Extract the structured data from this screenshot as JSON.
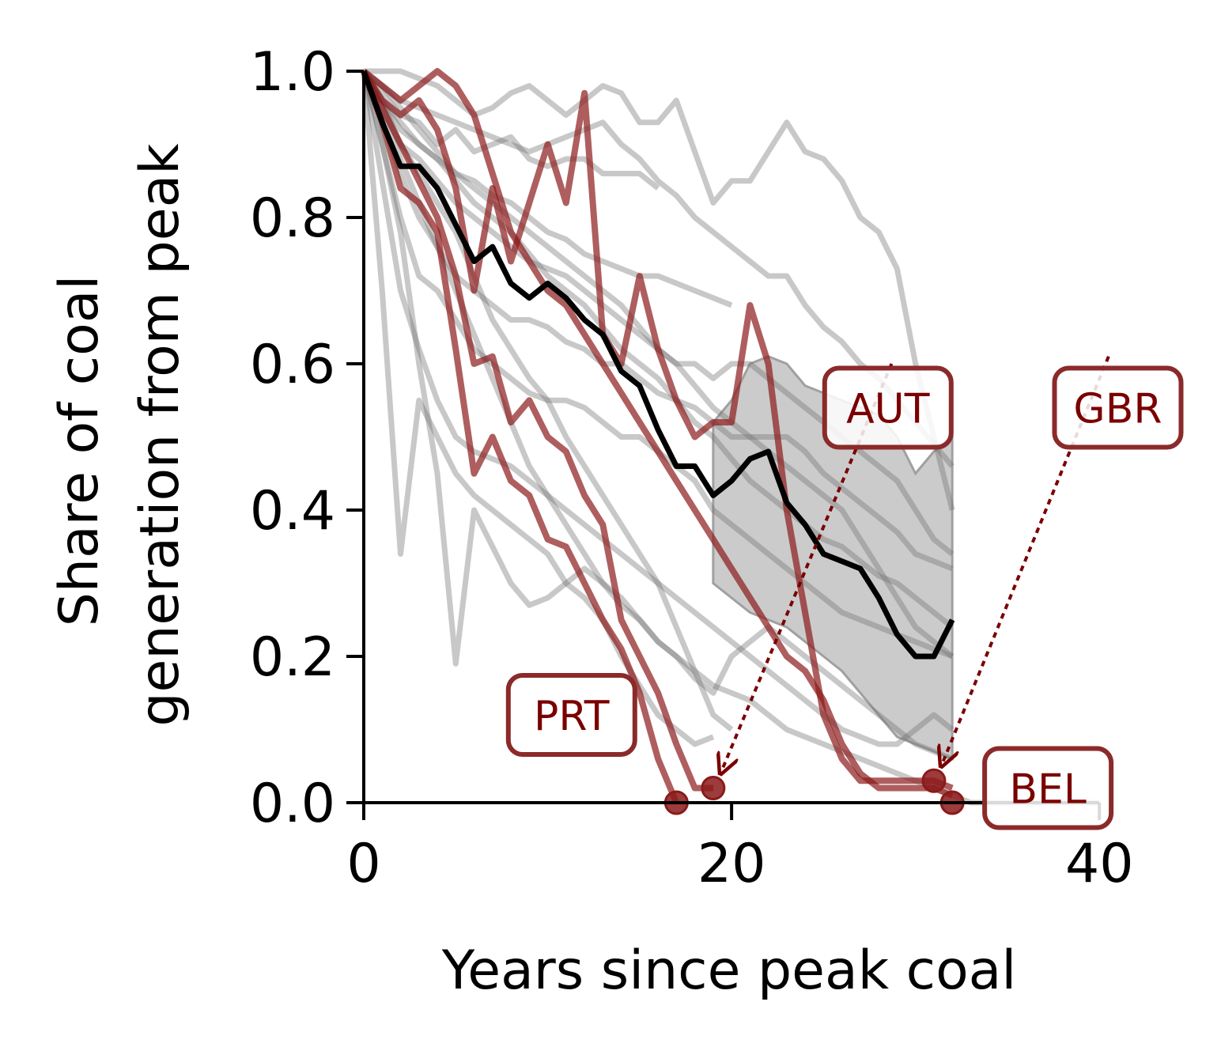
{
  "chart_data": {
    "type": "line",
    "xlabel": "Years since peak coal",
    "ylabel_lines": [
      "Share of coal",
      "generation from peak"
    ],
    "xlim": [
      0,
      43
    ],
    "ylim": [
      0,
      1.0
    ],
    "xticks": [
      0,
      20,
      40
    ],
    "yticks": [
      0.0,
      0.2,
      0.4,
      0.6,
      0.8,
      1.0
    ],
    "xtick_labels": [
      "0",
      "20",
      "40"
    ],
    "ytick_labels": [
      "0.0",
      "0.2",
      "0.4",
      "0.6",
      "0.8",
      "1.0"
    ],
    "grid": false,
    "colors": {
      "background_series": "#6e6e6e",
      "highlight_series": "#8b1a1a",
      "median": "#000000",
      "band": "#a0a0a0",
      "callout_border": "#8b2a2a",
      "callout_text": "#7a0000"
    },
    "band": {
      "x": [
        19,
        20,
        21,
        22,
        23,
        24,
        25,
        26,
        27,
        28,
        29,
        30,
        31,
        32
      ],
      "upper": [
        0.52,
        0.55,
        0.6,
        0.61,
        0.6,
        0.57,
        0.56,
        0.55,
        0.54,
        0.53,
        0.5,
        0.45,
        0.48,
        0.5
      ],
      "lower": [
        0.3,
        0.28,
        0.26,
        0.25,
        0.24,
        0.22,
        0.2,
        0.18,
        0.15,
        0.12,
        0.09,
        0.08,
        0.07,
        0.06
      ]
    },
    "background_series": [
      {
        "x": [
          0,
          1,
          2,
          3,
          4,
          5,
          6,
          7,
          8,
          9,
          10,
          11,
          12,
          13,
          14,
          15,
          16,
          17,
          18,
          19,
          20,
          21,
          22,
          23,
          24,
          25,
          26,
          27,
          28,
          29,
          30,
          31,
          32
        ],
        "values": [
          1.0,
          1.0,
          1.0,
          0.99,
          0.98,
          0.96,
          0.94,
          0.95,
          0.97,
          0.98,
          0.96,
          0.94,
          0.96,
          0.98,
          0.97,
          0.93,
          0.93,
          0.96,
          0.89,
          0.82,
          0.85,
          0.85,
          0.89,
          0.93,
          0.89,
          0.88,
          0.85,
          0.8,
          0.78,
          0.73,
          0.6,
          0.5,
          0.4
        ]
      },
      {
        "x": [
          0,
          1,
          2,
          3,
          4,
          5,
          6,
          7,
          8,
          9,
          10,
          11,
          12,
          13,
          14,
          15,
          16,
          17,
          18,
          19,
          20,
          21,
          22,
          23,
          24,
          25,
          26,
          27,
          28,
          29,
          30,
          31,
          32
        ],
        "values": [
          1.0,
          0.98,
          0.96,
          0.95,
          0.94,
          0.93,
          0.92,
          0.91,
          0.9,
          0.89,
          0.9,
          0.91,
          0.92,
          0.93,
          0.9,
          0.88,
          0.85,
          0.83,
          0.8,
          0.78,
          0.76,
          0.74,
          0.72,
          0.72,
          0.68,
          0.65,
          0.63,
          0.6,
          0.58,
          0.55,
          0.52,
          0.49,
          0.46
        ]
      },
      {
        "x": [
          0,
          1,
          2,
          3,
          4,
          5,
          6,
          7,
          8,
          9,
          10,
          11,
          12,
          13,
          14,
          15,
          16
        ],
        "values": [
          1.0,
          0.97,
          0.94,
          0.93,
          0.9,
          0.92,
          0.89,
          0.9,
          0.91,
          0.88,
          0.87,
          0.88,
          0.88,
          0.86,
          0.86,
          0.86,
          0.84
        ]
      },
      {
        "x": [
          0,
          1,
          2,
          3,
          4,
          5,
          6,
          7,
          8,
          9,
          10,
          11,
          12,
          13,
          14,
          15,
          16,
          17,
          18,
          19,
          20,
          21,
          22,
          23,
          24,
          25,
          26,
          27,
          28,
          29,
          30,
          31,
          32
        ],
        "values": [
          1.0,
          0.95,
          0.9,
          0.88,
          0.85,
          0.82,
          0.8,
          0.78,
          0.76,
          0.74,
          0.73,
          0.72,
          0.7,
          0.68,
          0.66,
          0.64,
          0.62,
          0.6,
          0.6,
          0.58,
          0.6,
          0.6,
          0.58,
          0.56,
          0.54,
          0.52,
          0.5,
          0.48,
          0.46,
          0.44,
          0.4,
          0.36,
          0.34
        ]
      },
      {
        "x": [
          0,
          1,
          2,
          3,
          4,
          5,
          6,
          7,
          8,
          9,
          10,
          11,
          12,
          13,
          14,
          15,
          16,
          17,
          18,
          19,
          20
        ],
        "values": [
          1.0,
          0.96,
          0.93,
          0.9,
          0.88,
          0.86,
          0.85,
          0.83,
          0.82,
          0.8,
          0.78,
          0.77,
          0.75,
          0.74,
          0.73,
          0.72,
          0.72,
          0.71,
          0.7,
          0.69,
          0.68
        ]
      },
      {
        "x": [
          0,
          1,
          2,
          3,
          4,
          5,
          6,
          7,
          8,
          9,
          10,
          11,
          12,
          13,
          14,
          15,
          16,
          17,
          18,
          19,
          20,
          21,
          22,
          23,
          24,
          25,
          26,
          27,
          28,
          29,
          30,
          31,
          32
        ],
        "values": [
          1.0,
          0.93,
          0.86,
          0.8,
          0.76,
          0.72,
          0.7,
          0.68,
          0.66,
          0.66,
          0.65,
          0.63,
          0.62,
          0.6,
          0.6,
          0.58,
          0.56,
          0.55,
          0.54,
          0.52,
          0.5,
          0.5,
          0.48,
          0.46,
          0.44,
          0.42,
          0.4,
          0.36,
          0.32,
          0.28,
          0.24,
          0.22,
          0.2
        ]
      },
      {
        "x": [
          0,
          1,
          2,
          3,
          4,
          5,
          6,
          7,
          8,
          9,
          10,
          11,
          12,
          13,
          14,
          15,
          16,
          17,
          18,
          19,
          20,
          21,
          22,
          23,
          24,
          25,
          26,
          27,
          28,
          29,
          30,
          31,
          32
        ],
        "values": [
          1.0,
          0.9,
          0.8,
          0.72,
          0.7,
          0.66,
          0.62,
          0.6,
          0.58,
          0.56,
          0.55,
          0.55,
          0.54,
          0.52,
          0.5,
          0.5,
          0.48,
          0.46,
          0.44,
          0.4,
          0.38,
          0.36,
          0.34,
          0.32,
          0.3,
          0.28,
          0.26,
          0.25,
          0.24,
          0.23,
          0.22,
          0.21,
          0.2
        ]
      },
      {
        "x": [
          0,
          1,
          2,
          3,
          4,
          5,
          6,
          7,
          8,
          9,
          10,
          11,
          12,
          13,
          14,
          15,
          16,
          17,
          18,
          19,
          20,
          21,
          22,
          23,
          24,
          25,
          26,
          27,
          28,
          29,
          30,
          31,
          32
        ],
        "values": [
          1.0,
          0.85,
          0.7,
          0.62,
          0.55,
          0.5,
          0.48,
          0.47,
          0.46,
          0.44,
          0.42,
          0.4,
          0.38,
          0.36,
          0.34,
          0.32,
          0.3,
          0.28,
          0.26,
          0.24,
          0.22,
          0.2,
          0.18,
          0.16,
          0.14,
          0.12,
          0.1,
          0.09,
          0.08,
          0.08,
          0.1,
          0.12,
          0.1
        ]
      },
      {
        "x": [
          0,
          1,
          2,
          3,
          4,
          5,
          6,
          7,
          8,
          9,
          10,
          11,
          12,
          13,
          14,
          15,
          16,
          17,
          18,
          19
        ],
        "values": [
          1.0,
          0.7,
          0.34,
          0.55,
          0.5,
          0.45,
          0.42,
          0.4,
          0.38,
          0.36,
          0.34,
          0.3,
          0.28,
          0.25,
          0.2,
          0.16,
          0.12,
          0.1,
          0.08,
          0.09
        ]
      },
      {
        "x": [
          0,
          1,
          2,
          3,
          4,
          5,
          6,
          7,
          8,
          9,
          10,
          11,
          12,
          13,
          14,
          15,
          16,
          17,
          18,
          19,
          20,
          21,
          22,
          23,
          24,
          25,
          26,
          27,
          28,
          29,
          30,
          31,
          32
        ],
        "values": [
          1.0,
          0.9,
          0.78,
          0.6,
          0.45,
          0.19,
          0.4,
          0.35,
          0.3,
          0.27,
          0.28,
          0.3,
          0.32,
          0.3,
          0.28,
          0.25,
          0.22,
          0.2,
          0.17,
          0.15,
          0.2,
          0.22,
          0.24,
          0.22,
          0.2,
          0.18,
          0.16,
          0.14,
          0.12,
          0.1,
          0.08,
          0.07,
          0.06
        ]
      },
      {
        "x": [
          0,
          1,
          2,
          3,
          4,
          5,
          6,
          7,
          8,
          9,
          10,
          11,
          12,
          13,
          14,
          15,
          16,
          17,
          18,
          19,
          20,
          21,
          22,
          23,
          24,
          25,
          26,
          27,
          28,
          29,
          30,
          31,
          32
        ],
        "values": [
          1.0,
          0.96,
          0.92,
          0.9,
          0.88,
          0.85,
          0.82,
          0.8,
          0.78,
          0.75,
          0.72,
          0.7,
          0.68,
          0.65,
          0.62,
          0.6,
          0.58,
          0.55,
          0.52,
          0.5,
          0.47,
          0.44,
          0.42,
          0.4,
          0.38,
          0.36,
          0.35,
          0.33,
          0.31,
          0.3,
          0.28,
          0.26,
          0.24
        ]
      },
      {
        "x": [
          0,
          1,
          2,
          3,
          4,
          5,
          6,
          7,
          8,
          9,
          10,
          11,
          12,
          13,
          14,
          15,
          16,
          17,
          18,
          19,
          20,
          21,
          22,
          23,
          24,
          25,
          26,
          27,
          28,
          29,
          30,
          31,
          32
        ],
        "values": [
          1.0,
          0.98,
          0.95,
          0.92,
          0.89,
          0.86,
          0.84,
          0.82,
          0.8,
          0.78,
          0.76,
          0.74,
          0.72,
          0.7,
          0.68,
          0.65,
          0.62,
          0.6,
          0.57,
          0.54,
          0.52,
          0.5,
          0.5,
          0.5,
          0.48,
          0.45,
          0.43,
          0.41,
          0.39,
          0.37,
          0.34,
          0.33,
          0.32
        ]
      },
      {
        "x": [
          0,
          1,
          2,
          3,
          4,
          5,
          6,
          7,
          8,
          9,
          10,
          11,
          12,
          13,
          14,
          15,
          16,
          17,
          18,
          19,
          20,
          21,
          22,
          23,
          24,
          25,
          26,
          27,
          28,
          29,
          30,
          31,
          32,
          33,
          34,
          35,
          36,
          37,
          38,
          39,
          40
        ],
        "values": [
          1.0,
          0.94,
          0.88,
          0.82,
          0.76,
          0.7,
          0.64,
          0.58,
          0.52,
          0.46,
          0.42,
          0.38,
          0.34,
          0.3,
          0.27,
          0.25,
          0.22,
          0.2,
          0.18,
          0.16,
          0.15,
          0.14,
          0.12,
          0.1,
          0.09,
          0.08,
          0.07,
          0.06,
          0.05,
          0.04,
          0.03,
          0.02,
          0.01,
          0.0,
          0.0,
          0.0,
          0.0,
          0.0,
          0.0,
          0.0,
          0.0
        ]
      },
      {
        "x": [
          0,
          1,
          2,
          3,
          4,
          5,
          6,
          7,
          8,
          9,
          10,
          11,
          12,
          13,
          14,
          15,
          16,
          17,
          18,
          19,
          20
        ],
        "values": [
          1.0,
          0.96,
          0.9,
          0.86,
          0.82,
          0.78,
          0.72,
          0.66,
          0.62,
          0.58,
          0.55,
          0.5,
          0.46,
          0.42,
          0.38,
          0.34,
          0.3,
          0.24,
          0.18,
          0.12,
          0.1
        ]
      }
    ],
    "highlight_series": [
      {
        "x": [
          0,
          1,
          2,
          3,
          4,
          5,
          6,
          7,
          8,
          9,
          10,
          11,
          12,
          13,
          14,
          15,
          16,
          17
        ],
        "values": [
          1.0,
          0.93,
          0.84,
          0.82,
          0.78,
          0.62,
          0.45,
          0.5,
          0.44,
          0.42,
          0.36,
          0.35,
          0.3,
          0.25,
          0.21,
          0.15,
          0.06,
          0.0
        ]
      },
      {
        "x": [
          0,
          1,
          2,
          3,
          4,
          5,
          6,
          7,
          8,
          9,
          10,
          11,
          12,
          13,
          14,
          15,
          16,
          17,
          18,
          19
        ],
        "values": [
          1.0,
          0.95,
          0.9,
          0.85,
          0.8,
          0.72,
          0.6,
          0.61,
          0.52,
          0.55,
          0.5,
          0.48,
          0.42,
          0.38,
          0.25,
          0.2,
          0.15,
          0.08,
          0.02,
          0.02
        ]
      },
      {
        "x": [
          0,
          1,
          2,
          3,
          4,
          5,
          6,
          7,
          8,
          9,
          10,
          11,
          12,
          13,
          14,
          15,
          16,
          17,
          18,
          19,
          20,
          21,
          22,
          23,
          24,
          25,
          26,
          27,
          28,
          29,
          30,
          31,
          32
        ],
        "values": [
          1.0,
          0.98,
          0.96,
          0.98,
          1.0,
          0.98,
          0.94,
          0.86,
          0.78,
          0.74,
          0.7,
          0.68,
          0.64,
          0.6,
          0.56,
          0.52,
          0.48,
          0.44,
          0.4,
          0.36,
          0.32,
          0.28,
          0.24,
          0.2,
          0.18,
          0.14,
          0.08,
          0.04,
          0.02,
          0.02,
          0.02,
          0.02,
          0.01
        ]
      },
      {
        "x": [
          0,
          1,
          2,
          3,
          4,
          5,
          6,
          7,
          8,
          9,
          10,
          11,
          12,
          13,
          14,
          15,
          16,
          17,
          18,
          19,
          20,
          21,
          22,
          23,
          24,
          25,
          26,
          27,
          28,
          29,
          30,
          31,
          32
        ],
        "values": [
          1.0,
          0.96,
          0.94,
          0.96,
          0.92,
          0.84,
          0.7,
          0.84,
          0.74,
          0.82,
          0.9,
          0.82,
          0.97,
          0.64,
          0.6,
          0.72,
          0.62,
          0.55,
          0.5,
          0.52,
          0.52,
          0.68,
          0.6,
          0.4,
          0.26,
          0.12,
          0.06,
          0.03,
          0.03,
          0.03,
          0.03,
          0.03,
          0.02
        ]
      }
    ],
    "median_series": {
      "x": [
        0,
        1,
        2,
        3,
        4,
        5,
        6,
        7,
        8,
        9,
        10,
        11,
        12,
        13,
        14,
        15,
        16,
        17,
        18,
        19,
        20,
        21,
        22,
        23,
        24,
        25,
        26,
        27,
        28,
        29,
        30,
        31,
        32
      ],
      "values": [
        1.0,
        0.93,
        0.87,
        0.87,
        0.84,
        0.79,
        0.74,
        0.76,
        0.71,
        0.69,
        0.71,
        0.69,
        0.66,
        0.64,
        0.59,
        0.57,
        0.51,
        0.46,
        0.46,
        0.42,
        0.44,
        0.47,
        0.48,
        0.41,
        0.38,
        0.34,
        0.33,
        0.32,
        0.28,
        0.23,
        0.2,
        0.2,
        0.25
      ]
    },
    "end_markers": [
      {
        "x": 17,
        "y": 0.0
      },
      {
        "x": 19,
        "y": 0.02
      },
      {
        "x": 31,
        "y": 0.03
      },
      {
        "x": 32,
        "y": 0.0
      }
    ],
    "annotations": [
      {
        "label": "AUT",
        "box_x": 28.5,
        "box_y": 0.54,
        "arrow_from": [
          28.7,
          0.6
        ],
        "arrow_to": [
          19.4,
          0.04
        ]
      },
      {
        "label": "GBR",
        "box_x": 41.0,
        "box_y": 0.54,
        "arrow_from": [
          40.5,
          0.61
        ],
        "arrow_to": [
          31.4,
          0.05
        ]
      },
      {
        "label": "PRT",
        "box_x": 11.3,
        "box_y": 0.12,
        "arrow_from": null,
        "arrow_to": null
      },
      {
        "label": "BEL",
        "box_x": 37.2,
        "box_y": 0.02,
        "arrow_from": null,
        "arrow_to": null
      }
    ]
  }
}
